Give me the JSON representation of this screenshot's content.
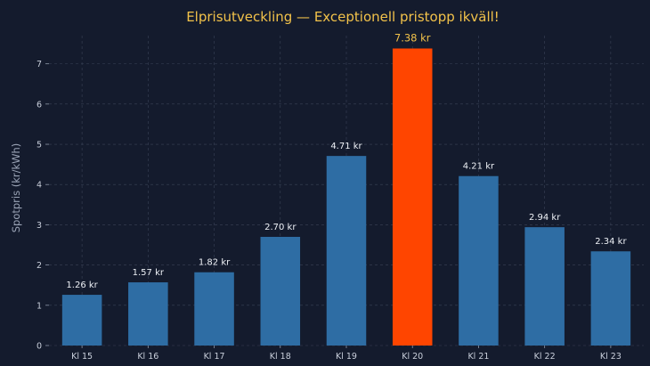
{
  "chart_data": {
    "type": "bar",
    "title": "Elprisutveckling — Exceptionell pristopp ikväll!",
    "xlabel": "",
    "ylabel": "Spotpris (kr/kWh)",
    "categories": [
      "Kl 15",
      "Kl 16",
      "Kl 17",
      "Kl 18",
      "Kl 19",
      "Kl 20",
      "Kl 21",
      "Kl 22",
      "Kl 23"
    ],
    "values": [
      1.26,
      1.57,
      1.82,
      2.7,
      4.71,
      7.38,
      4.21,
      2.94,
      2.34
    ],
    "value_labels": [
      "1.26 kr",
      "1.57 kr",
      "1.82 kr",
      "2.70 kr",
      "4.71 kr",
      "7.38 kr",
      "4.21 kr",
      "2.94 kr",
      "2.34 kr"
    ],
    "ylim": [
      0,
      7.7
    ],
    "yticks": [
      0,
      1,
      2,
      3,
      4,
      5,
      6,
      7
    ],
    "grid": true,
    "highlight_index": 5,
    "colors": {
      "bar": "#2e6da4",
      "highlight": "#ff4500",
      "title": "#f2c24a",
      "background": "#141b2d"
    }
  }
}
